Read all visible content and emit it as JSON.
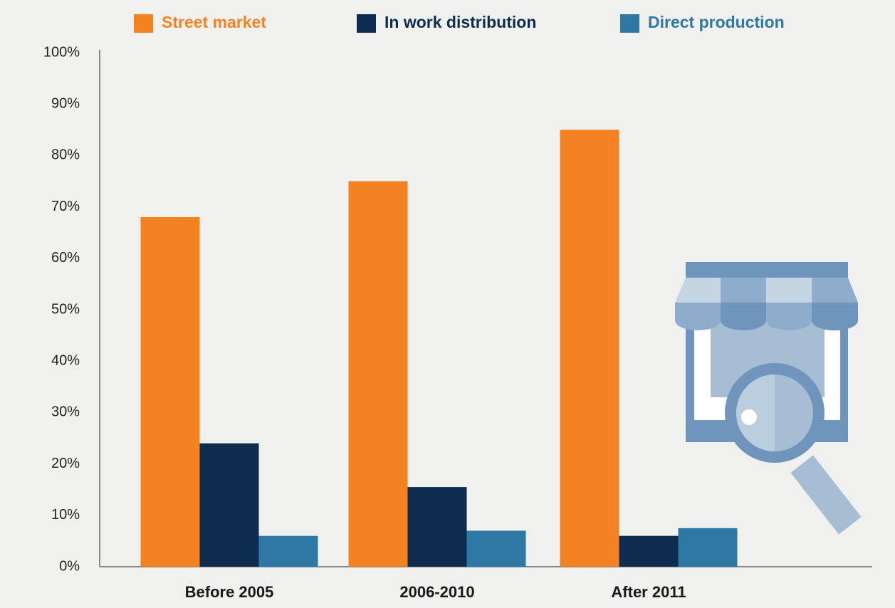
{
  "chart_data": {
    "type": "bar",
    "categories": [
      "Before 2005",
      "2006-2010",
      "After 2011"
    ],
    "series": [
      {
        "name": "Street market",
        "color": "#f58220",
        "values": [
          68,
          75,
          85
        ]
      },
      {
        "name": "In work distribution",
        "color": "#0e2d4e",
        "values": [
          24,
          15.5,
          6
        ]
      },
      {
        "name": "Direct production",
        "color": "#2e78a5",
        "values": [
          6,
          7,
          7.5
        ]
      }
    ],
    "ylim": [
      0,
      100
    ],
    "yticks": [
      {
        "value": 0,
        "label": "0%"
      },
      {
        "value": 10,
        "label": "10%"
      },
      {
        "value": 20,
        "label": "20%"
      },
      {
        "value": 30,
        "label": "30%"
      },
      {
        "value": 40,
        "label": "40%"
      },
      {
        "value": 50,
        "label": "50%"
      },
      {
        "value": 60,
        "label": "60%"
      },
      {
        "value": 70,
        "label": "70%"
      },
      {
        "value": 80,
        "label": "80%"
      },
      {
        "value": 90,
        "label": "90%"
      },
      {
        "value": 100,
        "label": "100%"
      }
    ],
    "legend": "top",
    "grid": false
  }
}
